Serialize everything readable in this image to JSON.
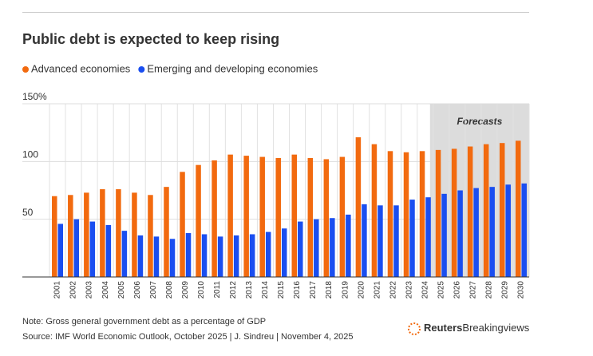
{
  "chart_data": {
    "type": "bar",
    "title": "Public debt is expected to keep rising",
    "categories": [
      "2001",
      "2002",
      "2003",
      "2004",
      "2005",
      "2006",
      "2007",
      "2008",
      "2009",
      "2010",
      "2011",
      "2012",
      "2013",
      "2014",
      "2015",
      "2016",
      "2017",
      "2018",
      "2019",
      "2020",
      "2021",
      "2022",
      "2023",
      "2024",
      "2025",
      "2026",
      "2027",
      "2028",
      "2029",
      "2030"
    ],
    "series": [
      {
        "name": "Advanced economies",
        "color": "#f26a0f",
        "values": [
          70,
          71,
          73,
          76,
          76,
          73,
          71,
          78,
          91,
          97,
          101,
          106,
          105,
          104,
          103,
          106,
          103,
          102,
          104,
          121,
          115,
          109,
          108,
          109,
          110,
          111,
          113,
          115,
          116,
          118
        ]
      },
      {
        "name": "Emerging and developing economies",
        "color": "#1a4ef0",
        "values": [
          46,
          50,
          48,
          45,
          40,
          36,
          35,
          33,
          38,
          37,
          35,
          36,
          37,
          39,
          42,
          48,
          50,
          51,
          54,
          63,
          62,
          62,
          67,
          69,
          72,
          75,
          77,
          78,
          80,
          81
        ]
      }
    ],
    "ylim": [
      0,
      150
    ],
    "yticks": [
      50,
      100,
      {
        "value": 150,
        "label": "150%"
      }
    ],
    "grid": true,
    "shaded_categories": [
      "2025",
      "2030"
    ],
    "shaded_label": "Forecasts",
    "note": "Note: Gross general government debt as a percentage of GDP",
    "source": "Source: IMF World Economic Outlook, October 2025 | J. Sindreu | November 4, 2025",
    "logo": {
      "brand": "Reuters",
      "product": "Breakingviews"
    }
  }
}
